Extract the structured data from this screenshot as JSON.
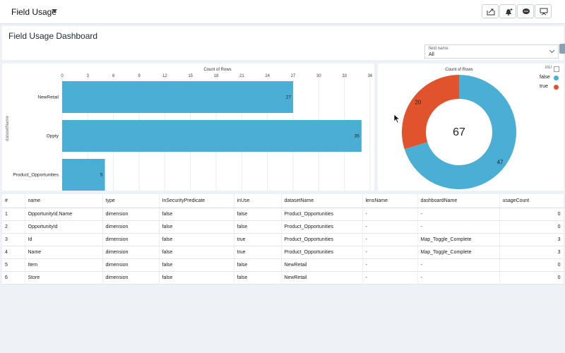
{
  "app": {
    "title": "Field Usage"
  },
  "toolbar": {
    "buttons": [
      "share-icon",
      "notify-icon",
      "chat-icon",
      "present-icon"
    ]
  },
  "dashboard": {
    "title": "Field Usage Dashboard",
    "filter": {
      "label": "field name",
      "value": "All"
    }
  },
  "bar_chart": {
    "type": "bar",
    "title": "Count of Rows",
    "ylabel": "datasetName",
    "categories": [
      "NewRetail",
      "Oppty",
      "Product_Opportunities"
    ],
    "values": [
      27,
      35,
      5
    ],
    "ticks": [
      0,
      3,
      6,
      9,
      12,
      15,
      18,
      21,
      24,
      27,
      30,
      33,
      36
    ],
    "xlim": [
      0,
      36
    ],
    "color": "#4aaed5"
  },
  "donut_chart": {
    "type": "pie",
    "title": "Count of Rows",
    "total": "67",
    "legend_title": "inU",
    "slices": [
      {
        "name": "false",
        "value": 47,
        "color": "#4aaed5"
      },
      {
        "name": "true",
        "value": 20,
        "color": "#e0532d"
      }
    ]
  },
  "table": {
    "columns": [
      "#",
      "name",
      "type",
      "InSecurityPredicate",
      "inUse",
      "datasetName",
      "lensName",
      "dashboardName",
      "usageCount"
    ],
    "rows": [
      [
        "1",
        "OpportunityId.Name",
        "dimension",
        "false",
        "false",
        "Product_Opportunities",
        "-",
        "-",
        "0"
      ],
      [
        "2",
        "OpportunityId",
        "dimension",
        "false",
        "false",
        "Product_Opportunities",
        "-",
        "-",
        "0"
      ],
      [
        "3",
        "Id",
        "dimension",
        "false",
        "true",
        "Product_Opportunities",
        "-",
        "Map_Toggle_Complete",
        "3"
      ],
      [
        "4",
        "Name",
        "dimension",
        "false",
        "true",
        "Product_Opportunities",
        "-",
        "Map_Toggle_Complete",
        "3"
      ],
      [
        "5",
        "Item",
        "dimension",
        "false",
        "false",
        "NewRetail",
        "-",
        "-",
        "0"
      ],
      [
        "6",
        "Store",
        "dimension",
        "false",
        "false",
        "NewRetail",
        "-",
        "-",
        "0"
      ]
    ]
  }
}
